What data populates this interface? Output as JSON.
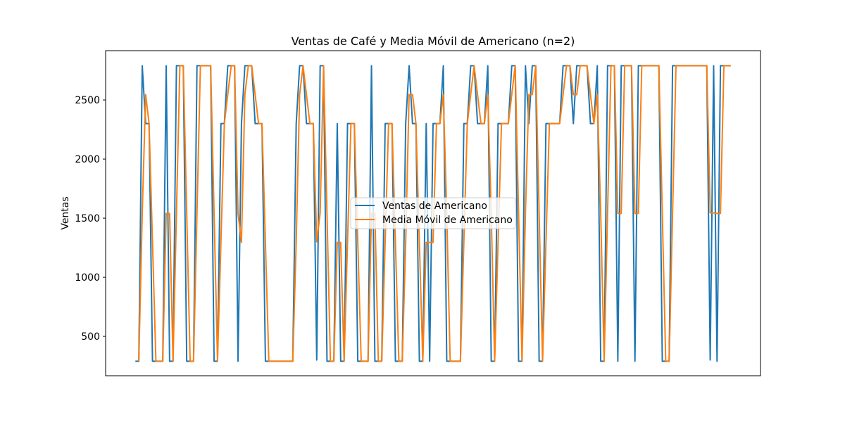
{
  "chart_data": {
    "type": "line",
    "title": "Ventas de Café y Media Móvil de Americano (n=2)",
    "y_label": "Ventas",
    "ylim": [
      167,
      2917
    ],
    "yticks": [
      500,
      1000,
      1500,
      2000,
      2500
    ],
    "legend": "center",
    "series": [
      {
        "name": "Ventas de Americano",
        "color": "#1f77b4",
        "values": [
          290,
          290,
          2790,
          2300,
          2300,
          290,
          290,
          290,
          290,
          2790,
          290,
          290,
          2790,
          2790,
          2790,
          290,
          290,
          290,
          2790,
          2790,
          2790,
          2790,
          2790,
          290,
          290,
          2300,
          2300,
          2790,
          2790,
          2790,
          290,
          2300,
          2790,
          2790,
          2790,
          2300,
          2300,
          2300,
          290,
          290,
          290,
          290,
          290,
          290,
          290,
          290,
          290,
          2300,
          2790,
          2790,
          2300,
          2300,
          2300,
          300,
          2790,
          2790,
          290,
          290,
          290,
          2300,
          290,
          290,
          2300,
          2300,
          2300,
          290,
          290,
          290,
          290,
          2790,
          290,
          290,
          290,
          2300,
          2300,
          2300,
          290,
          290,
          290,
          2300,
          2790,
          2300,
          2300,
          290,
          290,
          2300,
          290,
          2300,
          2300,
          2300,
          2790,
          290,
          290,
          290,
          290,
          290,
          2300,
          2300,
          2790,
          2790,
          2300,
          2300,
          2300,
          2790,
          290,
          290,
          2300,
          2300,
          2300,
          2300,
          2790,
          2790,
          290,
          290,
          2790,
          2300,
          2790,
          2790,
          290,
          290,
          2300,
          2300,
          2300,
          2300,
          2300,
          2790,
          2790,
          2790,
          2300,
          2790,
          2790,
          2790,
          2790,
          2300,
          2300,
          2790,
          290,
          290,
          2790,
          2790,
          2790,
          290,
          2790,
          2790,
          2790,
          2790,
          290,
          2790,
          2790,
          2790,
          2790,
          2790,
          2790,
          2790,
          290,
          290,
          290,
          2790,
          2790,
          2790,
          2790,
          2790,
          2790,
          2790,
          2790,
          2790,
          2790,
          2790,
          300,
          2790,
          290,
          2790,
          2790,
          2790,
          2790
        ]
      },
      {
        "name": "Media Móvil de Americano",
        "color": "#ff7f0e",
        "values": [
          null,
          290,
          1540,
          2545,
          2300,
          1295,
          290,
          290,
          290,
          1540,
          1540,
          290,
          1540,
          2790,
          2790,
          1540,
          290,
          290,
          1540,
          2790,
          2790,
          2790,
          2790,
          1540,
          290,
          1295,
          2300,
          2545,
          2790,
          2790,
          1540,
          1295,
          2545,
          2790,
          2790,
          2545,
          2300,
          2300,
          1295,
          290,
          290,
          290,
          290,
          290,
          290,
          290,
          290,
          1295,
          2545,
          2790,
          2545,
          2300,
          2300,
          1300,
          1545,
          2790,
          1540,
          290,
          290,
          1295,
          1295,
          290,
          1295,
          2300,
          2300,
          1295,
          290,
          290,
          290,
          1540,
          1540,
          290,
          290,
          1295,
          2300,
          2300,
          1295,
          290,
          290,
          1295,
          2545,
          2545,
          2300,
          1295,
          290,
          1295,
          1295,
          1295,
          2300,
          2300,
          2545,
          1540,
          290,
          290,
          290,
          290,
          1295,
          2300,
          2545,
          2790,
          2545,
          2300,
          2300,
          2545,
          1540,
          290,
          1295,
          2300,
          2300,
          2300,
          2545,
          2790,
          1540,
          290,
          1540,
          2545,
          2545,
          2790,
          1540,
          290,
          1295,
          2300,
          2300,
          2300,
          2300,
          2545,
          2790,
          2790,
          2545,
          2545,
          2790,
          2790,
          2790,
          2545,
          2300,
          2545,
          1540,
          290,
          1540,
          2790,
          2790,
          1540,
          1540,
          2790,
          2790,
          2790,
          1540,
          1540,
          2790,
          2790,
          2790,
          2790,
          2790,
          2790,
          1540,
          290,
          290,
          1540,
          2790,
          2790,
          2790,
          2790,
          2790,
          2790,
          2790,
          2790,
          2790,
          2790,
          1545,
          1545,
          1540,
          1540,
          2790,
          2790,
          2790
        ]
      }
    ]
  }
}
